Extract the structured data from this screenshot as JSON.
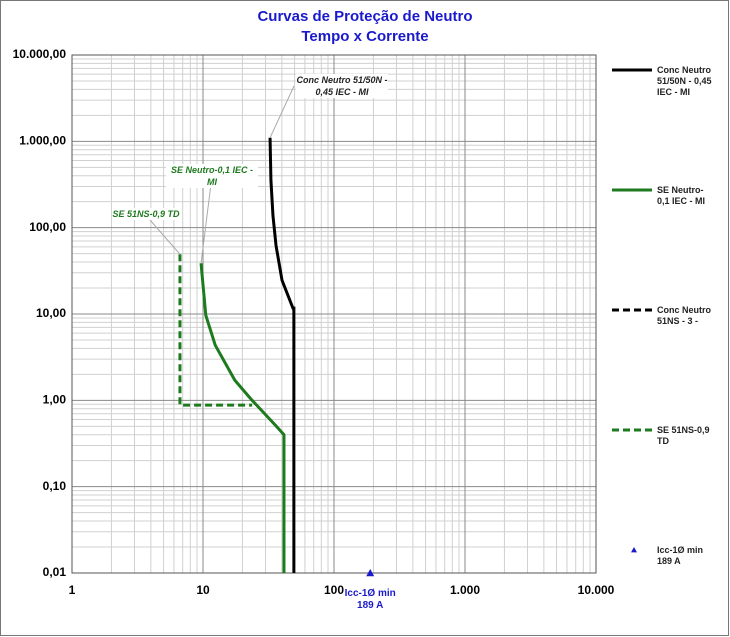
{
  "chart_data": {
    "type": "line",
    "title": "Curvas de Proteção de Neutro",
    "subtitle": "Tempo x Corrente",
    "xlog": true,
    "ylog": true,
    "grid": true,
    "legend": "right",
    "xlim": [
      1,
      10000
    ],
    "ylim": [
      0.01,
      10000
    ],
    "xticks": [
      1,
      10,
      100,
      {
        "value": 1000,
        "label": "1.000"
      },
      {
        "value": 10000,
        "label": "10.000"
      }
    ],
    "yticks": [
      {
        "value": 0.01,
        "label": "0,01"
      },
      {
        "value": 0.1,
        "label": "0,10"
      },
      {
        "value": 1,
        "label": "1,00"
      },
      {
        "value": 10,
        "label": "10,00"
      },
      {
        "value": 100,
        "label": "100,00"
      },
      {
        "value": 1000,
        "label": "1.000,00"
      },
      {
        "value": 10000,
        "label": "10.000,00"
      }
    ],
    "series": [
      {
        "name": "Conc Neutro 51/50N - 0,45 IEC - MI",
        "color": "#000000",
        "dash": false,
        "x": [
          32.5,
          33,
          34.2,
          36.1,
          40.1,
          48.6,
          49.4,
          49.4
        ],
        "values": [
          1100,
          354,
          138,
          62,
          24.6,
          11.7,
          11.7,
          0.01
        ]
      },
      {
        "name": "SE Neutro-0,1 IEC - MI",
        "color": "#1e7a1e",
        "dash": false,
        "x": [
          9.66,
          10.5,
          12.4,
          17.5,
          23.7,
          35.5,
          41.5,
          41.5
        ],
        "values": [
          38.7,
          9.7,
          4.35,
          1.71,
          1.0,
          0.52,
          0.4,
          0.01
        ]
      },
      {
        "name": "Conc Neutro 51NS - 3 -",
        "color": "#000000",
        "dash": true,
        "x": [],
        "values": []
      },
      {
        "name": "SE 51NS-0,9 TD",
        "color": "#1e7a1e",
        "dash": true,
        "x": [
          6.67,
          6.67,
          23.7
        ],
        "values": [
          49.2,
          0.88,
          0.88
        ]
      },
      {
        "name": "Icc-1Ø min 189 A",
        "color": "#1a1acc",
        "marker": "triangle",
        "x": [
          189
        ],
        "values": [
          0.01
        ]
      }
    ],
    "annotations": [
      {
        "text": "Conc Neutro 51/50N - 0,45 IEC - MI"
      },
      {
        "text": "SE Neutro-0,1 IEC - MI"
      },
      {
        "text": "SE 51NS-0,9 TD"
      },
      {
        "text": "Icc-1Ø min 189 A"
      }
    ]
  }
}
